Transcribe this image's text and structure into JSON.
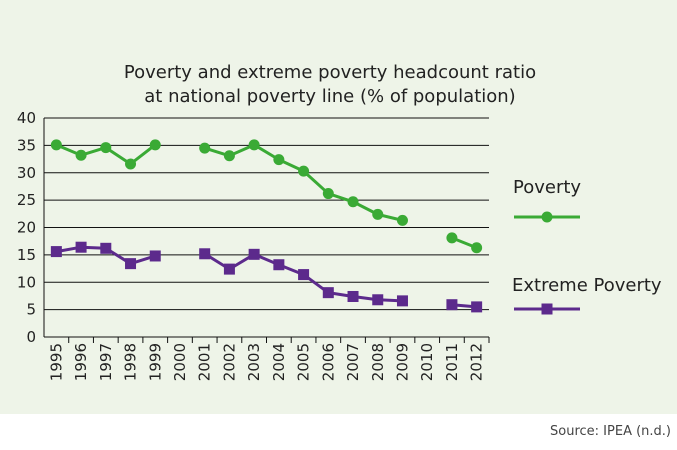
{
  "chart_data": {
    "type": "line",
    "title_lines": [
      "Poverty and extreme poverty headcount ratio",
      "at national poverty line (% of population)"
    ],
    "categories": [
      "1995",
      "1996",
      "1997",
      "1998",
      "1999",
      "2000",
      "2001",
      "2002",
      "2003",
      "2004",
      "2005",
      "2006",
      "2007",
      "2008",
      "2009",
      "2010",
      "2011",
      "2012"
    ],
    "y_ticks": [
      "0",
      "5",
      "10",
      "15",
      "20",
      "25",
      "30",
      "35",
      "40"
    ],
    "ylim": [
      0,
      40
    ],
    "series": [
      {
        "name": "Poverty",
        "color": "#3aaa35",
        "marker": "circle",
        "values": [
          35.1,
          33.2,
          34.6,
          31.6,
          35.1,
          null,
          34.5,
          33.1,
          35.1,
          32.4,
          30.3,
          26.2,
          24.7,
          22.4,
          21.3,
          null,
          18.1,
          16.3
        ]
      },
      {
        "name": "Extreme Poverty",
        "color": "#5c2a8c",
        "marker": "square",
        "values": [
          15.6,
          16.4,
          16.2,
          13.4,
          14.8,
          null,
          15.2,
          12.4,
          15.1,
          13.2,
          11.4,
          8.1,
          7.4,
          6.8,
          6.6,
          null,
          5.9,
          5.5
        ]
      }
    ],
    "source": "Source: IPEA (n.d.)"
  }
}
